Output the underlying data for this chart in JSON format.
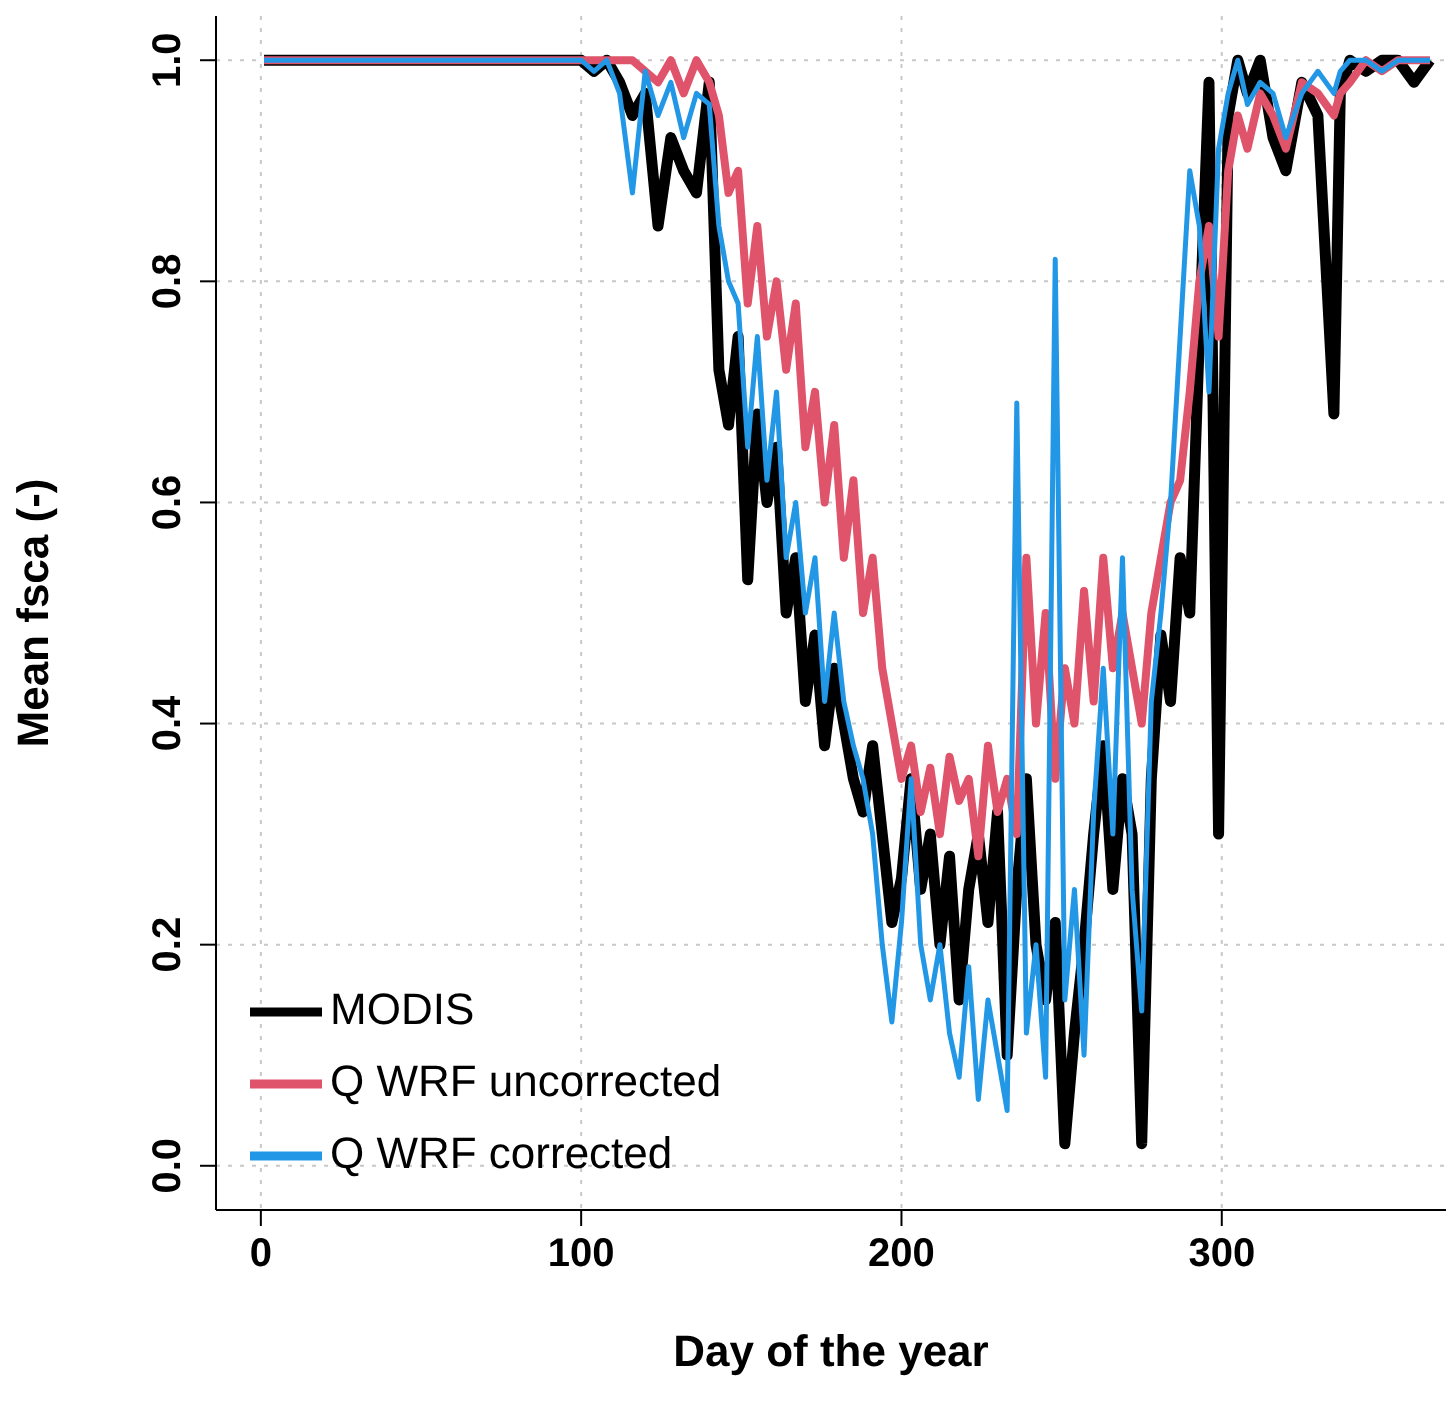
{
  "chart_data": {
    "type": "line",
    "xlabel": "Day of the year",
    "ylabel": "Mean fsca (-)",
    "x": [
      1,
      20,
      40,
      50,
      60,
      80,
      100,
      104,
      108,
      112,
      116,
      120,
      124,
      128,
      132,
      136,
      140,
      143,
      146,
      149,
      152,
      155,
      158,
      161,
      164,
      167,
      170,
      173,
      176,
      179,
      182,
      185,
      188,
      191,
      194,
      197,
      200,
      203,
      206,
      209,
      212,
      215,
      218,
      221,
      224,
      227,
      230,
      233,
      236,
      239,
      242,
      245,
      248,
      251,
      254,
      257,
      260,
      263,
      266,
      269,
      272,
      275,
      278,
      281,
      284,
      287,
      290,
      293,
      296,
      299,
      302,
      305,
      308,
      312,
      316,
      320,
      325,
      330,
      335,
      337,
      340,
      345,
      350,
      355,
      360,
      365
    ],
    "series": [
      {
        "name": "MODIS",
        "color": "#000000",
        "values": [
          1,
          1,
          1,
          1,
          1,
          1,
          1,
          0.99,
          1,
          0.98,
          0.95,
          0.97,
          0.85,
          0.93,
          0.9,
          0.88,
          0.98,
          0.72,
          0.67,
          0.75,
          0.53,
          0.68,
          0.6,
          0.65,
          0.5,
          0.55,
          0.42,
          0.48,
          0.38,
          0.45,
          0.4,
          0.35,
          0.32,
          0.38,
          0.3,
          0.22,
          0.26,
          0.35,
          0.25,
          0.3,
          0.2,
          0.28,
          0.15,
          0.25,
          0.3,
          0.22,
          0.32,
          0.1,
          0.25,
          0.35,
          0.2,
          0.15,
          0.22,
          0.02,
          0.12,
          0.2,
          0.3,
          0.38,
          0.25,
          0.35,
          0.3,
          0.02,
          0.35,
          0.48,
          0.42,
          0.55,
          0.5,
          0.75,
          0.98,
          0.3,
          0.95,
          1,
          0.97,
          1,
          0.93,
          0.9,
          0.98,
          0.95,
          0.68,
          0.97,
          1,
          0.99,
          1,
          1,
          0.98,
          1
        ]
      },
      {
        "name": "Q WRF uncorrected",
        "color": "#df536b",
        "values": [
          1,
          1,
          1,
          1,
          1,
          1,
          1,
          1,
          1,
          1,
          1,
          0.99,
          0.98,
          1,
          0.97,
          1,
          0.98,
          0.95,
          0.88,
          0.9,
          0.78,
          0.85,
          0.75,
          0.8,
          0.72,
          0.78,
          0.65,
          0.7,
          0.6,
          0.67,
          0.55,
          0.62,
          0.5,
          0.55,
          0.45,
          0.4,
          0.35,
          0.38,
          0.32,
          0.36,
          0.3,
          0.37,
          0.33,
          0.35,
          0.28,
          0.38,
          0.32,
          0.35,
          0.3,
          0.55,
          0.4,
          0.5,
          0.35,
          0.45,
          0.4,
          0.52,
          0.42,
          0.55,
          0.45,
          0.5,
          0.45,
          0.4,
          0.5,
          0.55,
          0.6,
          0.62,
          0.7,
          0.8,
          0.85,
          0.75,
          0.9,
          0.95,
          0.92,
          0.97,
          0.95,
          0.92,
          0.98,
          0.97,
          0.95,
          0.97,
          0.98,
          1,
          0.99,
          1,
          1,
          1
        ]
      },
      {
        "name": "Q WRF corrected",
        "color": "#2297e6",
        "values": [
          1,
          1,
          1,
          1,
          1,
          1,
          1,
          0.99,
          1,
          0.97,
          0.88,
          0.99,
          0.95,
          0.98,
          0.93,
          0.97,
          0.96,
          0.85,
          0.8,
          0.78,
          0.65,
          0.75,
          0.62,
          0.7,
          0.55,
          0.6,
          0.5,
          0.55,
          0.42,
          0.5,
          0.42,
          0.38,
          0.35,
          0.3,
          0.2,
          0.13,
          0.22,
          0.35,
          0.2,
          0.15,
          0.2,
          0.12,
          0.08,
          0.18,
          0.06,
          0.15,
          0.1,
          0.05,
          0.69,
          0.12,
          0.2,
          0.08,
          0.82,
          0.15,
          0.25,
          0.1,
          0.32,
          0.45,
          0.3,
          0.55,
          0.25,
          0.14,
          0.42,
          0.5,
          0.6,
          0.75,
          0.9,
          0.85,
          0.7,
          0.92,
          0.97,
          1,
          0.96,
          0.98,
          0.97,
          0.93,
          0.97,
          0.99,
          0.97,
          0.99,
          1,
          1,
          0.99,
          1,
          1,
          1
        ]
      }
    ],
    "xlim": [
      -14,
      370
    ],
    "ylim": [
      -0.04,
      1.04
    ],
    "xticks": [
      0,
      100,
      200,
      300
    ],
    "yticks": [
      {
        "value": 0,
        "label": "0.0"
      },
      {
        "value": 0.2,
        "label": "0.2"
      },
      {
        "value": 0.4,
        "label": "0.4"
      },
      {
        "value": 0.6,
        "label": "0.6"
      },
      {
        "value": 0.8,
        "label": "0.8"
      },
      {
        "value": 1,
        "label": "1.0"
      }
    ],
    "grid": true,
    "legend": "bottom left",
    "line_style": "solid"
  }
}
